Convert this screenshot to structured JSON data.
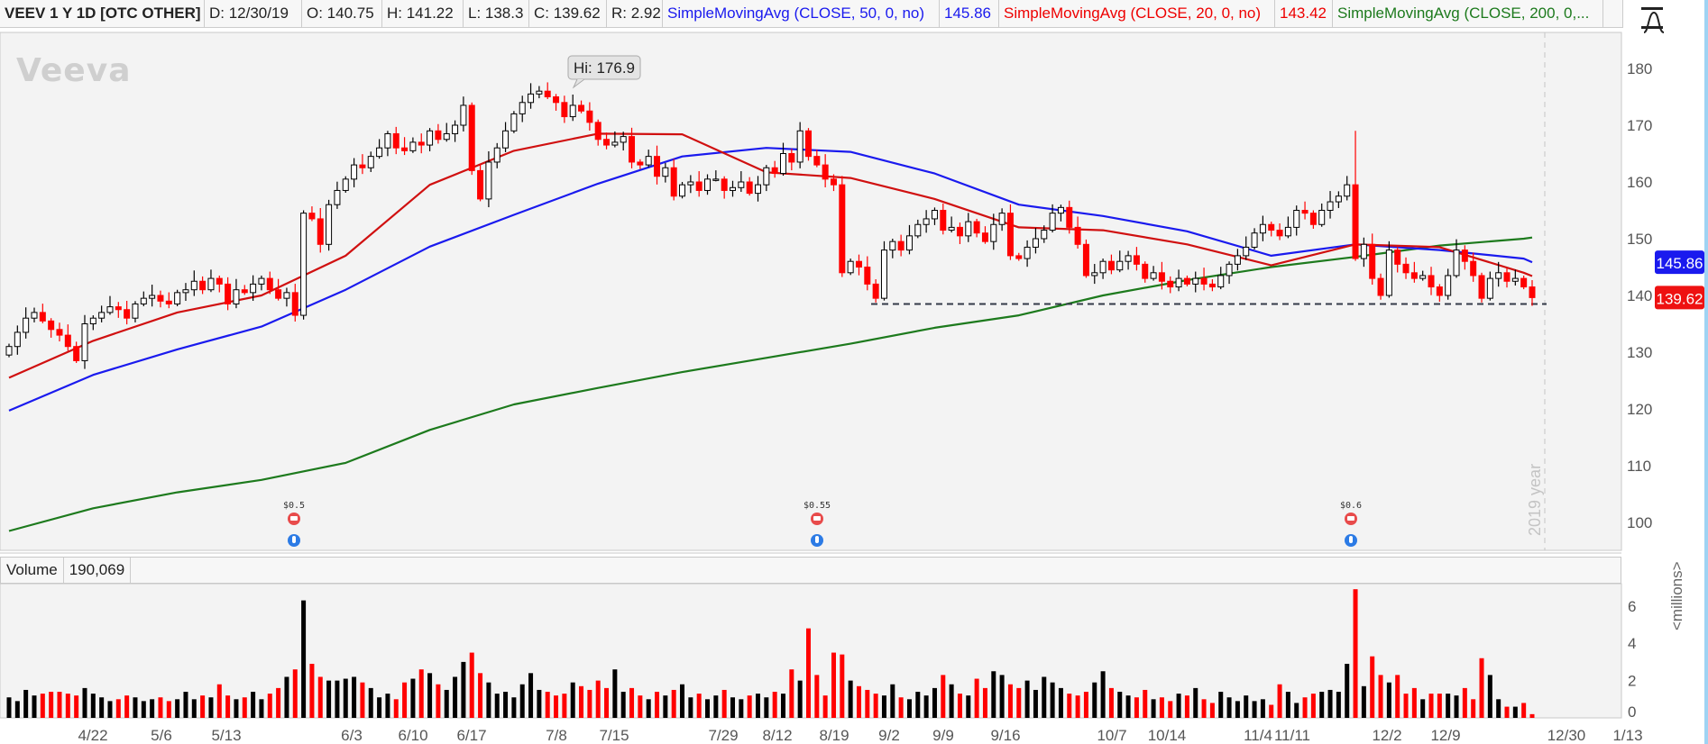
{
  "header": {
    "symbol": "VEEV 1 Y 1D [OTC OTHER]",
    "date": "D: 12/30/19",
    "open": "O: 140.75",
    "high": "H: 141.22",
    "low": "L: 138.3",
    "close": "C: 139.62",
    "range": "R: 2.92",
    "sma50_label": "SimpleMovingAvg (CLOSE, 50, 0, no)",
    "sma50_value": "145.86",
    "sma20_label": "SimpleMovingAvg (CLOSE, 20, 0, no)",
    "sma20_value": "143.42",
    "sma200_label": "SimpleMovingAvg (CLOSE, 200, 0,..."
  },
  "logo_text": "Veeva",
  "watermark": "2019 year",
  "high_marker": "Hi: 176.9",
  "volume_header": {
    "label": "Volume",
    "value": "190,069"
  },
  "volume_unit": "<millions>",
  "colors": {
    "up": "#000000",
    "down": "#ff0000",
    "sma50": "#1a1aee",
    "sma20": "#d01010",
    "sma200": "#1d7a1d",
    "background": "#f3f3f3"
  },
  "events": [
    {
      "label": "$0.5",
      "icons": [
        "earnings-phone-icon",
        "info-bulb-icon"
      ]
    },
    {
      "label": "$0.55",
      "icons": [
        "earnings-phone-icon",
        "info-bulb-icon"
      ]
    },
    {
      "label": "$0.6",
      "icons": [
        "earnings-phone-icon",
        "info-bulb-icon"
      ]
    }
  ],
  "chart_data": {
    "type": "candlestick",
    "title": "VEEV 1 Y 1D",
    "price_axis": {
      "ticks": [
        "180",
        "170",
        "160",
        "150",
        "140",
        "130",
        "120",
        "110",
        "100"
      ],
      "range": [
        95,
        186
      ]
    },
    "x_ticks": [
      "4/22",
      "5/6",
      "5/13",
      "6/3",
      "6/10",
      "6/17",
      "7/8",
      "7/15",
      "7/29",
      "8/12",
      "8/19",
      "9/2",
      "9/9",
      "9/16",
      "10/7",
      "10/14",
      "11/4",
      "11/11",
      "12/2",
      "12/9",
      "12/30",
      "1/13"
    ],
    "first_open": 129.5,
    "close": [
      131,
      133.5,
      136,
      137,
      135.5,
      134,
      133,
      131,
      128.5,
      135,
      136,
      137,
      138,
      137.5,
      136,
      138.5,
      139.5,
      140,
      139,
      138.5,
      140.5,
      141,
      142.5,
      141,
      143,
      142,
      138.5,
      141,
      140.5,
      142,
      143,
      141,
      139.5,
      140.5,
      136.5,
      154.5,
      153.5,
      149,
      156,
      158.5,
      160.5,
      163,
      162.5,
      164.5,
      166,
      168.5,
      166,
      165.5,
      167,
      166.5,
      169,
      167.5,
      168.5,
      170,
      173.5,
      162,
      157,
      163.5,
      166,
      169,
      172,
      174,
      175.5,
      176,
      175,
      174,
      171.5,
      173.5,
      172.5,
      170.5,
      167.5,
      166.5,
      167,
      168,
      163.5,
      163,
      164.5,
      161,
      162.5,
      157.5,
      159.5,
      160,
      158.5,
      160.5,
      160.5,
      158.5,
      159,
      160,
      158,
      159.5,
      162.5,
      161.5,
      165,
      163.5,
      169,
      164.5,
      163,
      160.5,
      159.5,
      144,
      146,
      145,
      142,
      139.5,
      148,
      149.5,
      148,
      150.5,
      152.5,
      153.5,
      155,
      151.5,
      152,
      150.5,
      153,
      151,
      149.5,
      152.5,
      154.5,
      147,
      146.5,
      148.5,
      150,
      151.5,
      154.5,
      155.5,
      152,
      149,
      143.5,
      144,
      146,
      144.5,
      146,
      147,
      145.5,
      143,
      144,
      142.5,
      141.5,
      143,
      142,
      143,
      142,
      141.5,
      143.5,
      145.5,
      147,
      148.5,
      151,
      152.5,
      151.5,
      150.5,
      152,
      155,
      154.5,
      152.5,
      155,
      156.5,
      157.5,
      159.5,
      146.5,
      149,
      143,
      140,
      148,
      145.5,
      144,
      143,
      143.5,
      141.5,
      140,
      143.5,
      148,
      146,
      143.5,
      139.5,
      143,
      144,
      142.5,
      143,
      141.5,
      139.62
    ],
    "high_overrides": [
      {
        "i": 63,
        "v": 176.9
      },
      {
        "i": 160,
        "v": 169.0
      }
    ],
    "volume_millions": [
      1.1,
      0.9,
      1.5,
      1.2,
      1.3,
      1.4,
      1.4,
      1.3,
      1.2,
      1.6,
      1.3,
      1.1,
      0.9,
      1.0,
      1.2,
      1.1,
      0.9,
      1.0,
      1.1,
      0.9,
      1.0,
      1.4,
      1.0,
      1.2,
      1.1,
      1.8,
      1.2,
      1.0,
      1.1,
      1.4,
      1.0,
      1.3,
      1.6,
      2.2,
      2.6,
      6.3,
      2.9,
      2.2,
      2.0,
      2.0,
      2.1,
      2.2,
      1.9,
      1.6,
      1.1,
      1.3,
      1.0,
      1.9,
      2.1,
      2.6,
      2.4,
      1.8,
      1.5,
      2.2,
      3.0,
      3.5,
      2.4,
      1.9,
      1.3,
      1.4,
      1.1,
      1.8,
      2.4,
      1.5,
      1.4,
      1.2,
      1.3,
      1.9,
      1.7,
      1.5,
      2.0,
      1.6,
      2.6,
      1.4,
      1.6,
      1.2,
      1.0,
      1.4,
      1.2,
      1.5,
      1.8,
      1.1,
      1.3,
      1.0,
      1.2,
      1.5,
      1.1,
      1.0,
      1.2,
      1.3,
      1.1,
      1.4,
      1.3,
      2.6,
      2.0,
      4.8,
      2.3,
      1.2,
      3.5,
      3.4,
      2.0,
      1.7,
      1.5,
      1.3,
      1.2,
      1.8,
      1.1,
      1.0,
      1.4,
      1.2,
      1.6,
      2.3,
      1.8,
      1.3,
      1.2,
      2.1,
      1.6,
      2.5,
      2.3,
      1.8,
      1.6,
      2.0,
      1.5,
      2.2,
      1.9,
      1.6,
      1.3,
      1.2,
      1.4,
      1.9,
      2.5,
      1.6,
      1.4,
      1.2,
      1.1,
      1.5,
      1.0,
      1.1,
      0.9,
      1.3,
      1.2,
      1.6,
      1.0,
      0.8,
      1.4,
      1.1,
      0.9,
      1.2,
      0.9,
      1.0,
      0.7,
      1.8,
      1.4,
      0.8,
      1.1,
      1.3,
      1.4,
      1.5,
      1.4,
      2.9,
      6.9,
      1.7,
      3.3,
      2.3,
      1.9,
      2.3,
      1.3,
      1.6,
      1.0,
      1.3,
      1.3,
      1.3,
      1.2,
      1.6,
      1.0,
      3.2,
      2.3,
      1.0,
      0.6,
      0.6,
      0.8,
      0.2
    ],
    "volume_axis": {
      "ticks": [
        "0",
        "2",
        "4",
        "6"
      ],
      "range": [
        0,
        7
      ]
    },
    "sma_sample_step": 10,
    "sma20": [
      125.5,
      132,
      137,
      140,
      147,
      159.5,
      165.5,
      168.5,
      168.4,
      161.7,
      160.7,
      157,
      152,
      151.5,
      149,
      145.3,
      149,
      148.5,
      144,
      143.42
    ],
    "sma50": [
      119.7,
      126,
      130.5,
      134.5,
      141,
      148.6,
      154.2,
      159.7,
      164.5,
      166,
      165.3,
      161.5,
      156,
      154,
      151.3,
      147,
      149,
      148,
      146.5,
      145.86
    ],
    "sma200": [
      98.5,
      102.5,
      105.3,
      107.5,
      110.5,
      116.3,
      120.8,
      123.7,
      126.5,
      129,
      131.5,
      134.3,
      136.5,
      140,
      142.7,
      145,
      146.8,
      148.8,
      150,
      150.2
    ],
    "support_level": 138.5,
    "last_labels": [
      {
        "series": "sma50",
        "text": "145.86"
      },
      {
        "series": "close",
        "text": "139.62"
      }
    ]
  }
}
